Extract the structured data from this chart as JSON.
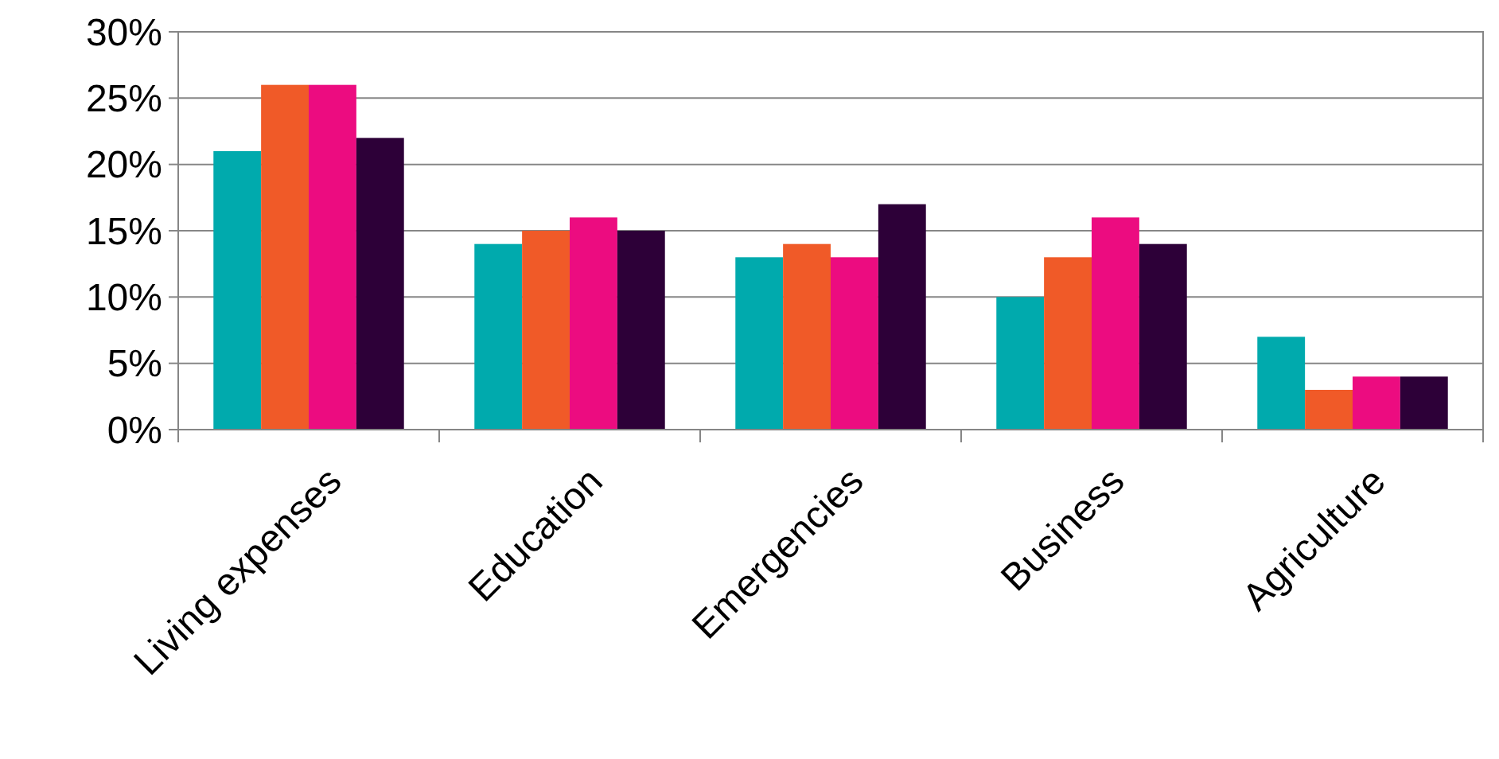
{
  "chart_data": {
    "type": "bar",
    "categories": [
      "Living expenses",
      "Education",
      "Emergencies",
      "Business",
      "Agriculture"
    ],
    "series": [
      {
        "color": "#00aaad",
        "values": [
          21,
          14,
          13,
          10,
          7
        ]
      },
      {
        "color": "#f05a28",
        "values": [
          26,
          15,
          14,
          13,
          3
        ]
      },
      {
        "color": "#ec0c80",
        "values": [
          26,
          16,
          13,
          16,
          4
        ]
      },
      {
        "color": "#2d0038",
        "values": [
          22,
          15,
          17,
          14,
          4
        ]
      }
    ],
    "ylim": [
      0,
      30
    ],
    "yticks": [
      {
        "value": 0,
        "label": "0%"
      },
      {
        "value": 5,
        "label": "5%"
      },
      {
        "value": 10,
        "label": "10%"
      },
      {
        "value": 15,
        "label": "15%"
      },
      {
        "value": 20,
        "label": "20%"
      },
      {
        "value": 25,
        "label": "25%"
      },
      {
        "value": 30,
        "label": "30%"
      }
    ],
    "grid": "y"
  }
}
